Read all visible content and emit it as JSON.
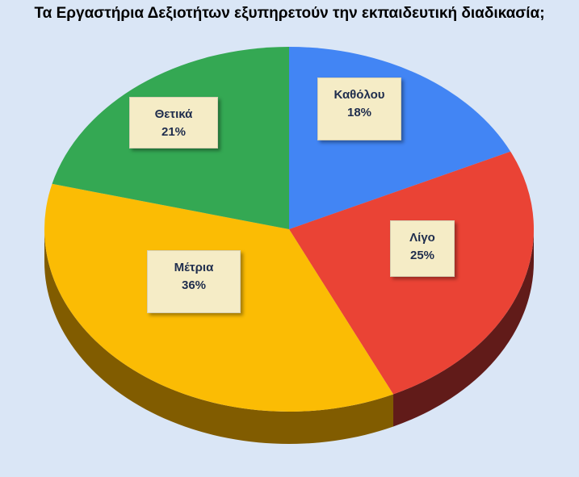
{
  "chart_data": {
    "type": "pie",
    "title": "Τα Εργαστήρια Δεξιοτήτων εξυπηρετούν την εκπαιδευτική διαδικασία;",
    "categories": [
      "Καθόλου",
      "Λίγο",
      "Μέτρια",
      "Θετικά"
    ],
    "values": [
      18,
      25,
      36,
      21
    ],
    "value_labels": [
      "18%",
      "25%",
      "36%",
      "21%"
    ],
    "colors": [
      "#4285f4",
      "#ea4335",
      "#fbbc04",
      "#34a853"
    ],
    "side_colors": [
      "#2a5fb8",
      "#6a1e1c",
      "#8c6400",
      "#1f6b35"
    ],
    "style": "3d-pie",
    "start_angle": "12 o'clock, clockwise",
    "legend": "none, labels on slices"
  }
}
